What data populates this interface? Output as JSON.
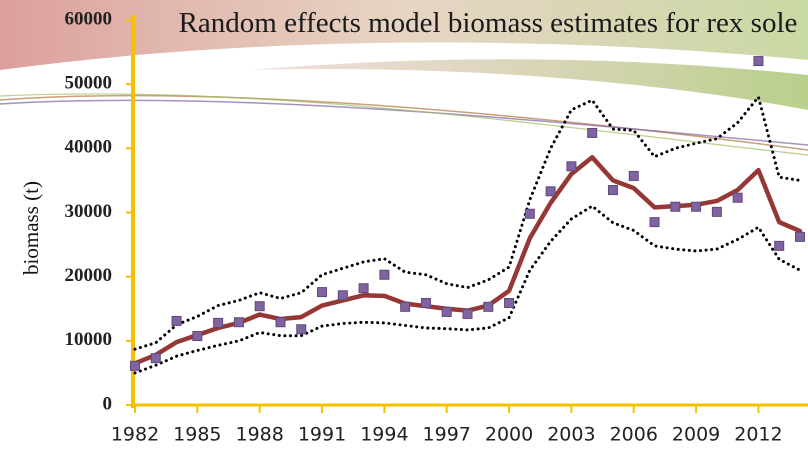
{
  "chart_data": {
    "type": "line",
    "title": "Random effects model biomass estimates for rex sole",
    "y_label": "biomass (t)",
    "x": [
      1982,
      1983,
      1984,
      1985,
      1986,
      1987,
      1988,
      1989,
      1990,
      1991,
      1992,
      1993,
      1994,
      1995,
      1996,
      1997,
      1998,
      1999,
      2000,
      2001,
      2002,
      2003,
      2004,
      2005,
      2006,
      2007,
      2008,
      2009,
      2010,
      2011,
      2012,
      2013,
      2014
    ],
    "xlim": [
      1982,
      2014
    ],
    "xticks": [
      1982,
      1985,
      1988,
      1991,
      1994,
      1997,
      2000,
      2003,
      2006,
      2009,
      2012
    ],
    "ylim": [
      0,
      60000
    ],
    "yticks": [
      0,
      10000,
      20000,
      30000,
      40000,
      50000,
      60000
    ],
    "grid": false,
    "series": [
      {
        "color": "#000000",
        "style": "dotted",
        "values": [
          8700,
          9700,
          12500,
          13800,
          15500,
          16300,
          17500,
          16600,
          17500,
          20300,
          21300,
          22300,
          22800,
          20700,
          20300,
          18900,
          18300,
          19500,
          21500,
          32000,
          40000,
          46000,
          47500,
          43000,
          42800,
          38700,
          40000,
          40800,
          41500,
          44000,
          48000,
          35500,
          35000
        ]
      },
      {
        "color": "#000000",
        "style": "dotted",
        "values": [
          5000,
          6200,
          7600,
          8500,
          9300,
          10000,
          11300,
          10800,
          10800,
          12300,
          12700,
          12900,
          12800,
          12400,
          12000,
          11900,
          11700,
          12000,
          13600,
          21000,
          25500,
          29000,
          31000,
          28400,
          27200,
          24800,
          24300,
          24000,
          24300,
          25800,
          27700,
          22700,
          21000
        ]
      },
      {
        "color": "#953735",
        "style": "solid",
        "values": [
          6500,
          7800,
          9800,
          10900,
          12000,
          12800,
          14100,
          13400,
          13700,
          15500,
          16300,
          17100,
          17000,
          15800,
          15400,
          15000,
          14700,
          15500,
          17800,
          26000,
          31500,
          36000,
          38600,
          35000,
          33800,
          30800,
          31000,
          31200,
          31800,
          33500,
          36600,
          28500,
          27100
        ]
      },
      {
        "color": "#8064a2",
        "marker": "square",
        "values": [
          6100,
          7300,
          13100,
          10750,
          12800,
          12900,
          15400,
          12900,
          11800,
          17600,
          17100,
          18200,
          20300,
          15300,
          15900,
          14500,
          14200,
          15300,
          15900,
          29800,
          33300,
          37200,
          42400,
          33500,
          35700,
          28500,
          30900,
          30900,
          30100,
          32300,
          53600,
          24800,
          26200
        ]
      }
    ]
  }
}
